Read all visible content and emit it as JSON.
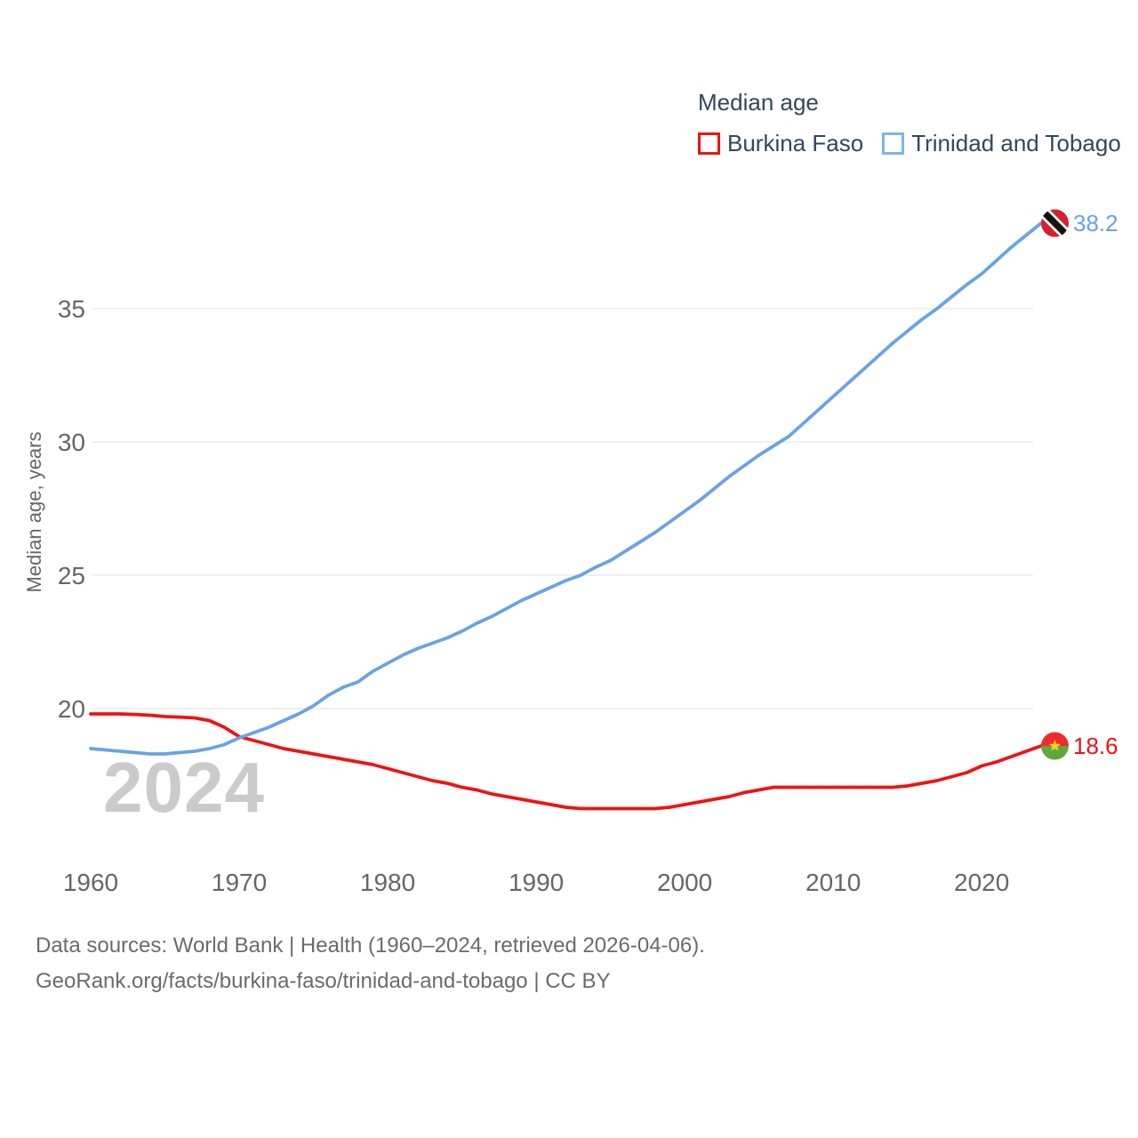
{
  "legend": {
    "title": "Median age",
    "items": [
      {
        "label": "Burkina Faso",
        "color": "#f01212"
      },
      {
        "label": "Trinidad and Tobago",
        "color": "#7cb5ec"
      }
    ]
  },
  "watermark": "2024",
  "footer": {
    "line1": "Data sources: World Bank | Health (1960–2024, retrieved 2026-04-06).",
    "line2": "GeoRank.org/facts/burkina-faso/trinidad-and-tobago | CC BY"
  },
  "chart_data": {
    "type": "line",
    "title": "Median age",
    "xlabel": "",
    "ylabel": "Median age, years",
    "xlim": [
      1960,
      2024
    ],
    "ylim": [
      15.5,
      39
    ],
    "x_ticks": [
      1960,
      1970,
      1980,
      1990,
      2000,
      2010,
      2020
    ],
    "y_ticks": [
      20,
      25,
      30,
      35
    ],
    "grid": "horizontal",
    "legend_position": "top-right",
    "x": [
      1960,
      1961,
      1962,
      1963,
      1964,
      1965,
      1966,
      1967,
      1968,
      1969,
      1970,
      1971,
      1972,
      1973,
      1974,
      1975,
      1976,
      1977,
      1978,
      1979,
      1980,
      1981,
      1982,
      1983,
      1984,
      1985,
      1986,
      1987,
      1988,
      1989,
      1990,
      1991,
      1992,
      1993,
      1994,
      1995,
      1996,
      1997,
      1998,
      1999,
      2000,
      2001,
      2002,
      2003,
      2004,
      2005,
      2006,
      2007,
      2008,
      2009,
      2010,
      2011,
      2012,
      2013,
      2014,
      2015,
      2016,
      2017,
      2018,
      2019,
      2020,
      2021,
      2022,
      2023,
      2024
    ],
    "series": [
      {
        "name": "Burkina Faso",
        "color": "#f01212",
        "end_label": "18.6",
        "end_marker": "burkina-faso-flag",
        "values": [
          19.8,
          19.8,
          19.8,
          19.78,
          19.75,
          19.7,
          19.68,
          19.65,
          19.55,
          19.3,
          18.95,
          18.8,
          18.65,
          18.5,
          18.4,
          18.3,
          18.2,
          18.1,
          18.0,
          17.9,
          17.75,
          17.6,
          17.45,
          17.3,
          17.2,
          17.05,
          16.95,
          16.8,
          16.7,
          16.6,
          16.5,
          16.4,
          16.3,
          16.25,
          16.25,
          16.25,
          16.25,
          16.25,
          16.25,
          16.3,
          16.4,
          16.5,
          16.6,
          16.7,
          16.85,
          16.95,
          17.05,
          17.05,
          17.05,
          17.05,
          17.05,
          17.05,
          17.05,
          17.05,
          17.05,
          17.1,
          17.2,
          17.3,
          17.45,
          17.6,
          17.85,
          18.0,
          18.2,
          18.4,
          18.6
        ]
      },
      {
        "name": "Trinidad and Tobago",
        "color": "#68a3e4",
        "end_label": "38.2",
        "end_marker": "trinidad-and-tobago-flag",
        "values": [
          18.5,
          18.45,
          18.4,
          18.35,
          18.3,
          18.3,
          18.35,
          18.4,
          18.5,
          18.65,
          18.9,
          19.1,
          19.3,
          19.55,
          19.8,
          20.1,
          20.5,
          20.8,
          21.0,
          21.4,
          21.7,
          22.0,
          22.25,
          22.45,
          22.65,
          22.9,
          23.2,
          23.45,
          23.75,
          24.05,
          24.3,
          24.55,
          24.8,
          25.0,
          25.3,
          25.55,
          25.9,
          26.25,
          26.6,
          27.0,
          27.4,
          27.8,
          28.25,
          28.7,
          29.1,
          29.5,
          29.85,
          30.2,
          30.7,
          31.2,
          31.7,
          32.2,
          32.7,
          33.2,
          33.7,
          34.15,
          34.6,
          35.0,
          35.45,
          35.9,
          36.3,
          36.8,
          37.3,
          37.75,
          38.2
        ]
      }
    ]
  }
}
